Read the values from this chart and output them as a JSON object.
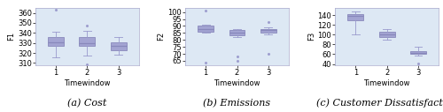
{
  "subplots": [
    {
      "title": "(a) Cost",
      "ylabel": "F1",
      "xlabel": "Timewindow",
      "ylim": [
        308,
        365
      ],
      "yticks": [
        310,
        320,
        330,
        340,
        350,
        360
      ],
      "boxes": [
        {
          "whislo": 316,
          "q1": 327,
          "med": 331,
          "q3": 336,
          "whishi": 341,
          "fliers": [
            363
          ]
        },
        {
          "whislo": 317,
          "q1": 327,
          "med": 330,
          "q3": 336,
          "whishi": 342,
          "fliers": [
            347,
            309
          ]
        },
        {
          "whislo": 318,
          "q1": 323,
          "med": 327,
          "q3": 331,
          "whishi": 336,
          "fliers": []
        }
      ]
    },
    {
      "title": "(b) Emissions",
      "ylabel": "F2",
      "xlabel": "Timewindow",
      "ylim": [
        62,
        103
      ],
      "yticks": [
        65,
        70,
        75,
        80,
        85,
        90,
        95,
        100
      ],
      "boxes": [
        {
          "whislo": 85,
          "q1": 86,
          "med": 88,
          "q3": 90,
          "whishi": 91,
          "fliers": [
            64,
            101
          ]
        },
        {
          "whislo": 82,
          "q1": 83,
          "med": 85,
          "q3": 87,
          "whishi": 88,
          "fliers": [
            68,
            65
          ]
        },
        {
          "whislo": 84,
          "q1": 85,
          "med": 87,
          "q3": 88,
          "whishi": 89,
          "fliers": [
            93,
            70
          ]
        }
      ]
    },
    {
      "title": "(c) Customer Dissatisfaction",
      "ylabel": "F3",
      "xlabel": "Timewindow",
      "ylim": [
        38,
        155
      ],
      "yticks": [
        40,
        60,
        80,
        100,
        120,
        140
      ],
      "boxes": [
        {
          "whislo": 100,
          "q1": 130,
          "med": 138,
          "q3": 143,
          "whishi": 148,
          "fliers": []
        },
        {
          "whislo": 90,
          "q1": 96,
          "med": 101,
          "q3": 106,
          "whishi": 112,
          "fliers": []
        },
        {
          "whislo": 57,
          "q1": 60,
          "med": 63,
          "q3": 66,
          "whishi": 75,
          "fliers": [
            41
          ]
        }
      ]
    }
  ],
  "box_facecolor": "#9999cc",
  "box_edgecolor": "#8888bb",
  "median_color": "#8888bb",
  "whisker_color": "#9999cc",
  "flier_color": "#9999cc",
  "background_color": "#dde8f4",
  "figure_facecolor": "#ffffff",
  "label_fontsize": 6,
  "tick_fontsize": 6,
  "caption_fontsize": 8
}
